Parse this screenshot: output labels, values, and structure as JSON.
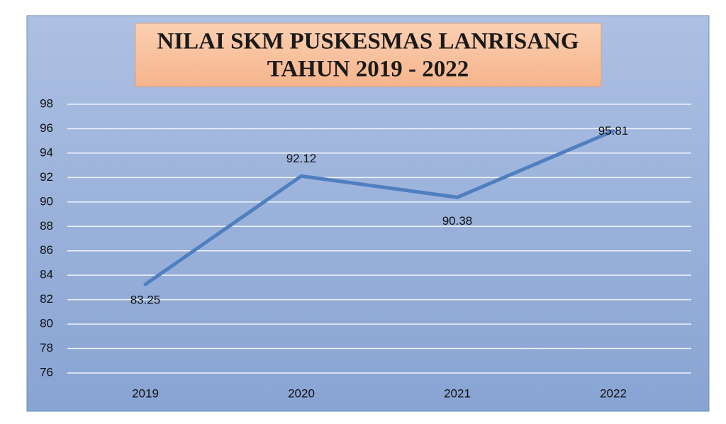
{
  "chart_data": {
    "type": "line",
    "title": [
      "NILAI SKM PUSKESMAS LANRISANG",
      "TAHUN 2019 - 2022"
    ],
    "categories": [
      "2019",
      "2020",
      "2021",
      "2022"
    ],
    "series": [
      {
        "color": "#4f7fbf",
        "values": [
          83.25,
          92.12,
          90.38,
          95.81
        ]
      }
    ],
    "ylim": [
      76,
      98
    ],
    "yticks": [
      76,
      78,
      80,
      82,
      84,
      86,
      88,
      90,
      92,
      94,
      96,
      98
    ],
    "grid": true,
    "data_labels": true
  }
}
